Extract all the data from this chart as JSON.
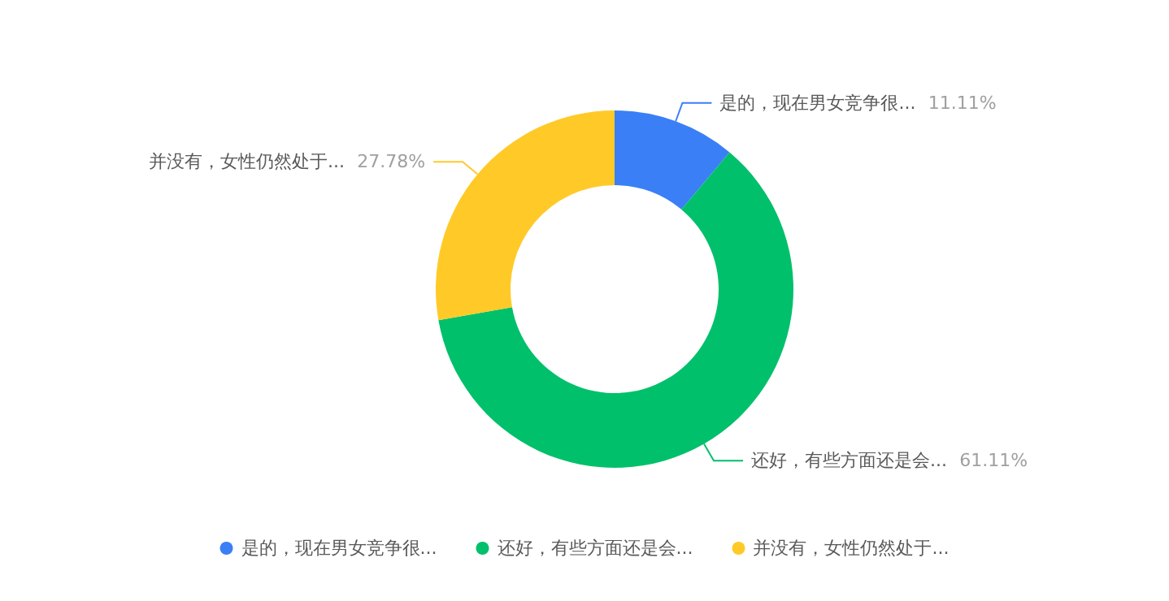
{
  "chart_data": {
    "type": "donut",
    "categories": [
      "是的，现在男女竞争很...",
      "还好，有些方面还是会...",
      "并没有，女性仍然处于..."
    ],
    "values": [
      11.11,
      61.11,
      27.78
    ],
    "value_labels": [
      "11.11%",
      "61.11%",
      "27.78%"
    ],
    "colors": [
      "#3a7ff6",
      "#00c06b",
      "#ffca28"
    ],
    "legend": "bottom"
  }
}
